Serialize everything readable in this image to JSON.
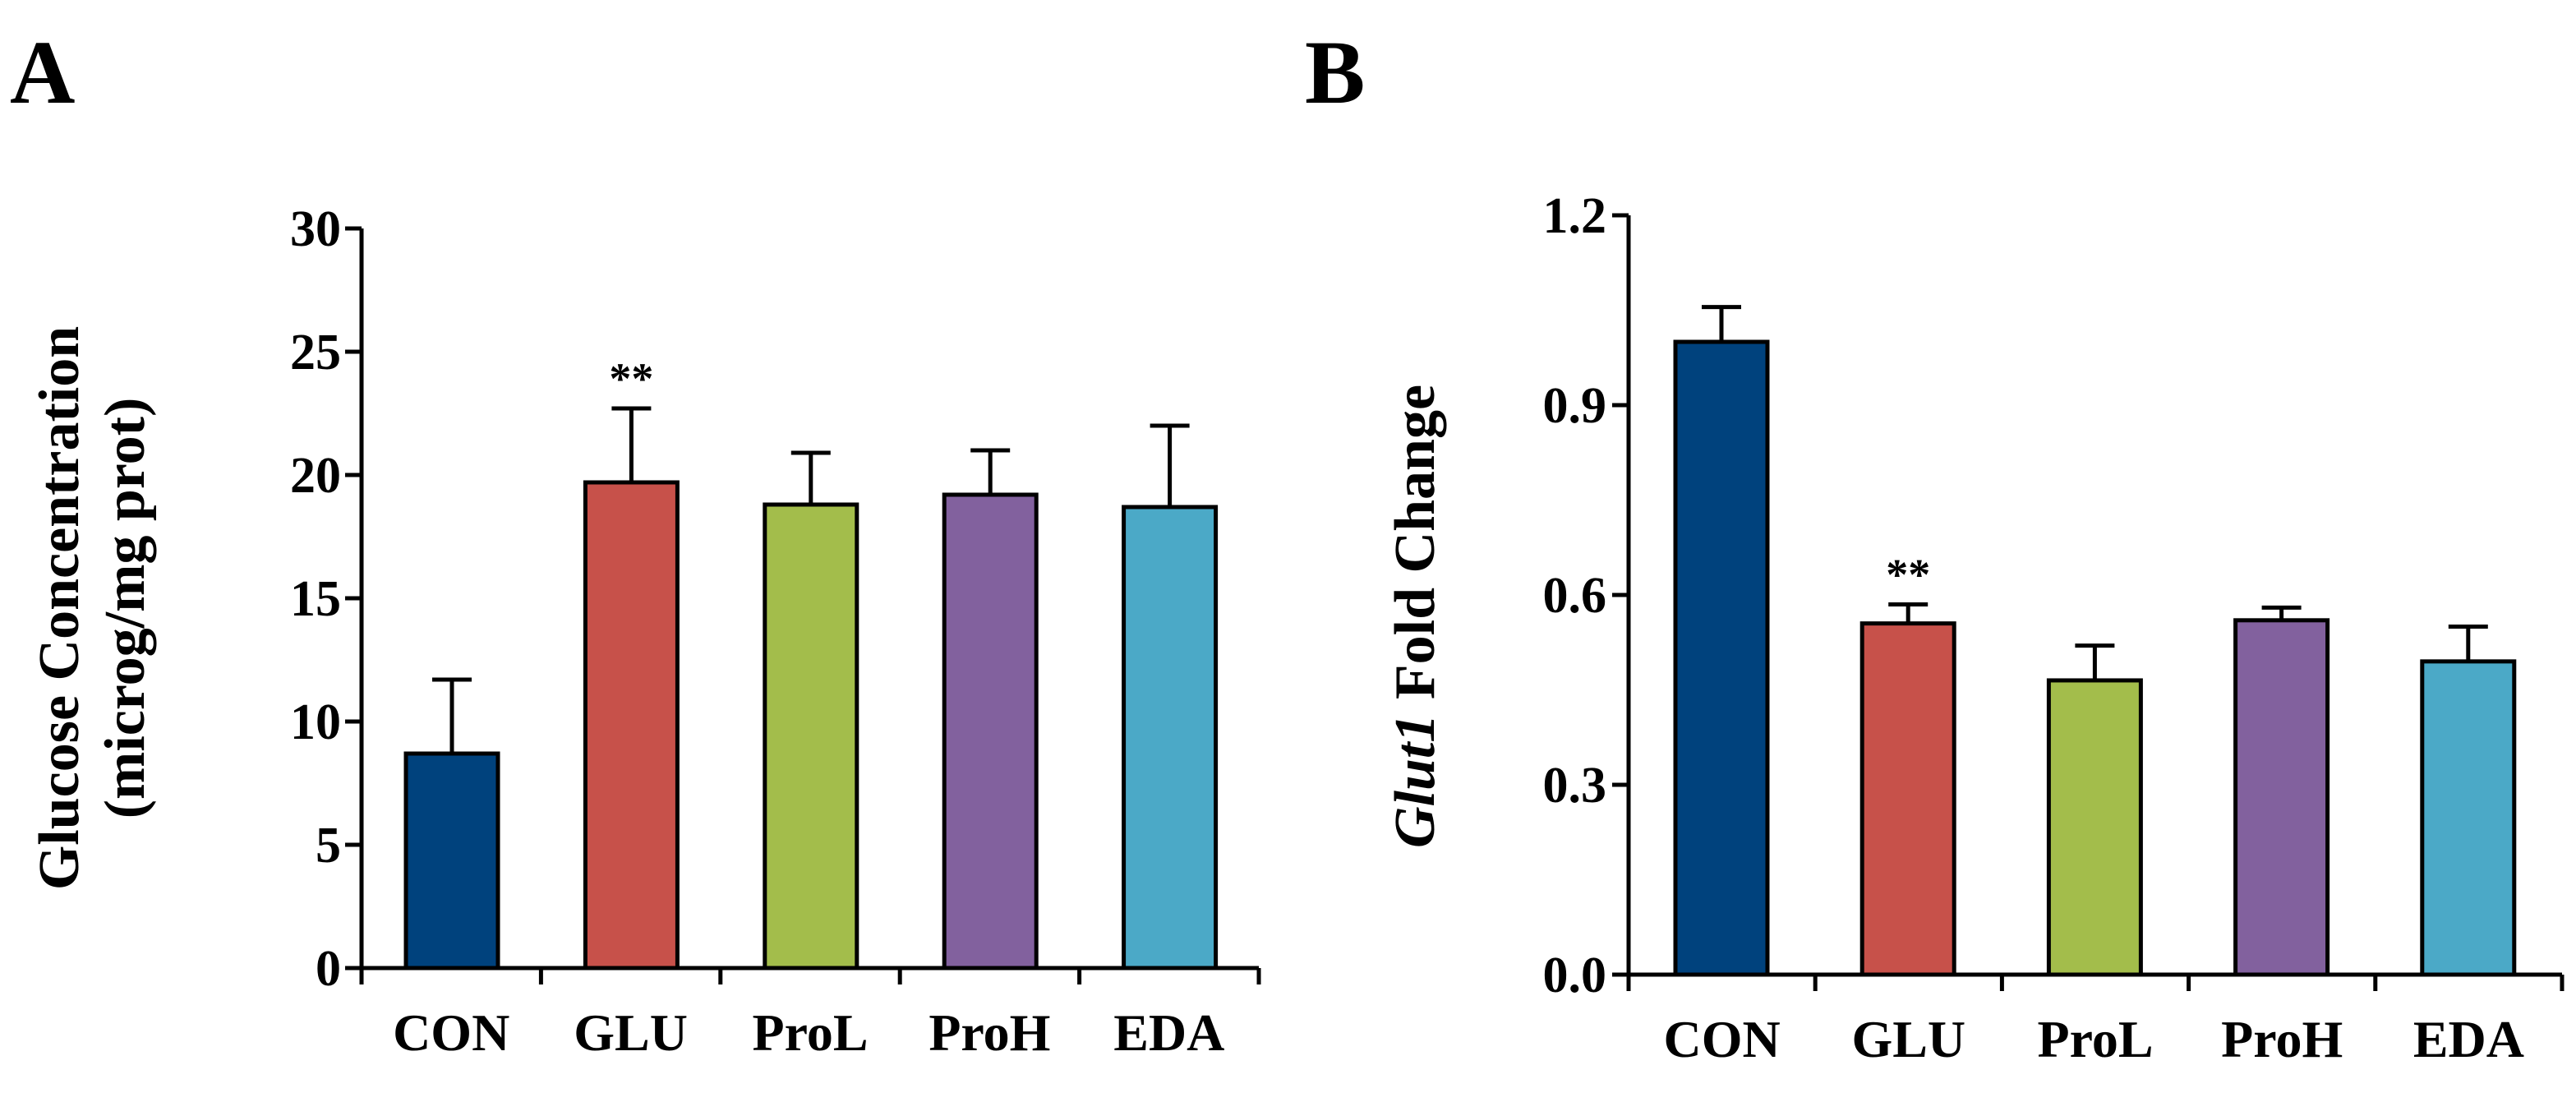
{
  "colors": {
    "CON": "#00427d",
    "GLU": "#c7514a",
    "ProL": "#a3bd4b",
    "ProH": "#82619e",
    "EDA": "#4ba9c7",
    "axis": "#000000"
  },
  "chart_data": [
    {
      "type": "bar",
      "panel": "A",
      "categories": [
        "CON",
        "GLU",
        "ProL",
        "ProH",
        "EDA"
      ],
      "values": [
        8.7,
        19.7,
        18.8,
        19.2,
        18.7
      ],
      "errors": [
        3.0,
        3.0,
        2.1,
        1.8,
        3.3
      ],
      "annotations": [
        "",
        "**",
        "",
        "",
        ""
      ],
      "ylabel_line1": "Glucose Concentration",
      "ylabel_line2": "(microg/mg prot)",
      "ylim": [
        0,
        30
      ],
      "yticks": [
        0,
        5,
        10,
        15,
        20,
        25,
        30
      ],
      "ytick_labels": [
        "0",
        "5",
        "10",
        "15",
        "20",
        "25",
        "30"
      ]
    },
    {
      "type": "bar",
      "panel": "B",
      "categories": [
        "CON",
        "GLU",
        "ProL",
        "ProH",
        "EDA"
      ],
      "values": [
        1.0,
        0.555,
        0.465,
        0.56,
        0.495
      ],
      "errors": [
        0.055,
        0.03,
        0.055,
        0.02,
        0.055
      ],
      "annotations": [
        "",
        "**",
        "",
        "",
        ""
      ],
      "ylabel_italic": "Glut1",
      "ylabel_rest": " Fold Change",
      "ylim": [
        0,
        1.2
      ],
      "yticks": [
        0,
        0.3,
        0.6,
        0.9,
        1.2
      ],
      "ytick_labels": [
        "0.0",
        "0.3",
        "0.6",
        "0.9",
        "1.2"
      ]
    }
  ]
}
